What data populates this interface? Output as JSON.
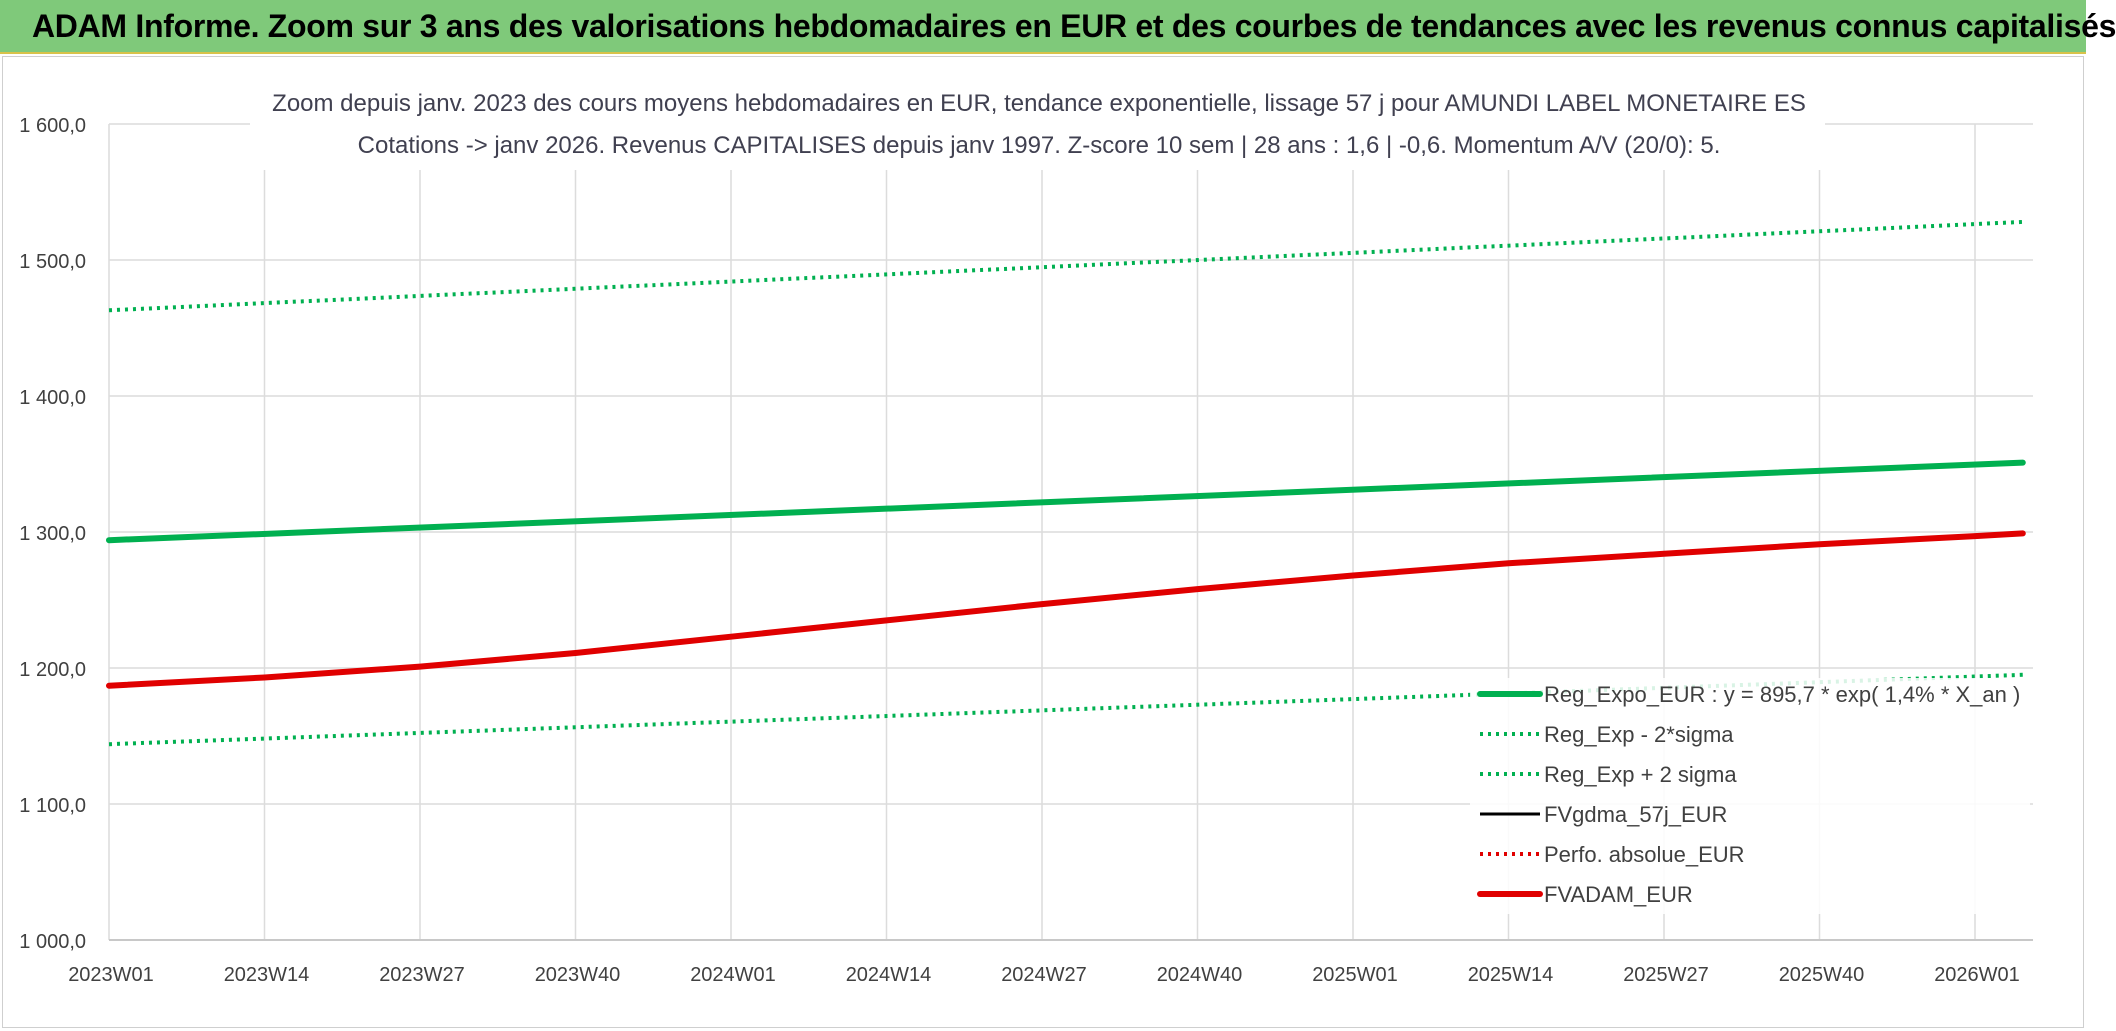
{
  "banner": {
    "text": "ADAM Informe. Zoom sur 3 ans des valorisations hebdomadaires en EUR et des courbes de tendances avec les revenus connus capitalisés"
  },
  "chart_data": {
    "type": "line",
    "title_line1": "Zoom depuis janv. 2023 des cours moyens hebdomadaires en EUR, tendance exponentielle, lissage 57 j pour AMUNDI LABEL MONETAIRE ES",
    "title_line2": "Cotations -> janv 2026. Revenus CAPITALISES depuis janv 1997. Z-score 10 sem | 28 ans : 1,6 | -0,6. Momentum A/V (20/0): 5.",
    "ylim": [
      1000,
      1600
    ],
    "y_ticks": [
      "1 000,0",
      "1 100,0",
      "1 200,0",
      "1 300,0",
      "1 400,0",
      "1 500,0",
      "1 600,0"
    ],
    "x_ticks": [
      "2023W01",
      "2023W14",
      "2023W27",
      "2023W40",
      "2024W01",
      "2024W14",
      "2024W27",
      "2024W40",
      "2025W01",
      "2025W14",
      "2025W27",
      "2025W40",
      "2026W01"
    ],
    "grid": true,
    "legend_position": "bottom-right",
    "series": [
      {
        "name": "Reg_Expo_EUR : y = 895,7 * exp( 1,4% *  X_an )",
        "color": "#00b050",
        "style": "solid-thick",
        "x": [
          "2023W01",
          "2026W05"
        ],
        "values": [
          1294,
          1351
        ]
      },
      {
        "name": "Reg_Exp - 2*sigma",
        "color": "#00b050",
        "style": "dotted",
        "x": [
          "2023W01",
          "2026W05"
        ],
        "values": [
          1144,
          1195
        ]
      },
      {
        "name": "Reg_Exp + 2 sigma",
        "color": "#00b050",
        "style": "dotted",
        "x": [
          "2023W01",
          "2026W05"
        ],
        "values": [
          1463,
          1528
        ]
      },
      {
        "name": "FVgdma_57j_EUR",
        "color": "#000000",
        "style": "solid",
        "x": [
          "2023W01",
          "2023W14",
          "2023W27",
          "2023W40",
          "2024W01",
          "2024W14",
          "2024W27",
          "2024W40",
          "2025W01",
          "2025W14",
          "2025W27",
          "2025W40",
          "2026W01",
          "2026W05"
        ],
        "values": [
          1187,
          1193,
          1201,
          1211,
          1223,
          1235,
          1247,
          1258,
          1268,
          1277,
          1284,
          1291,
          1297,
          1299
        ]
      },
      {
        "name": "Perfo. absolue_EUR",
        "color": "#e00000",
        "style": "dotted",
        "x": [
          "2023W01",
          "2023W14",
          "2023W27",
          "2023W40",
          "2024W01",
          "2024W14",
          "2024W27",
          "2024W40",
          "2025W01",
          "2025W14",
          "2025W27",
          "2025W40",
          "2026W01",
          "2026W05"
        ],
        "values": [
          1187,
          1193,
          1201,
          1211,
          1223,
          1235,
          1247,
          1258,
          1268,
          1277,
          1284,
          1291,
          1297,
          1299
        ]
      },
      {
        "name": "FVADAM_EUR",
        "color": "#e00000",
        "style": "solid-thick",
        "x": [
          "2023W01",
          "2023W14",
          "2023W27",
          "2023W40",
          "2024W01",
          "2024W14",
          "2024W27",
          "2024W40",
          "2025W01",
          "2025W14",
          "2025W27",
          "2025W40",
          "2026W01",
          "2026W05"
        ],
        "values": [
          1187,
          1193,
          1201,
          1211,
          1223,
          1235,
          1247,
          1258,
          1268,
          1277,
          1284,
          1291,
          1297,
          1299
        ]
      }
    ]
  }
}
